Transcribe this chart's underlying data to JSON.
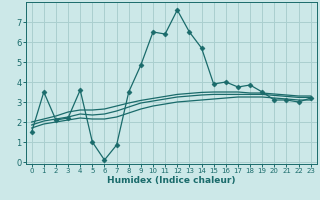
{
  "xlabel": "Humidex (Indice chaleur)",
  "background_color": "#cce8e8",
  "grid_color": "#aacfcf",
  "line_color": "#1a6b6b",
  "xlim": [
    -0.5,
    23.5
  ],
  "ylim": [
    -0.1,
    8.0
  ],
  "yticks": [
    0,
    1,
    2,
    3,
    4,
    5,
    6,
    7
  ],
  "xticks": [
    0,
    1,
    2,
    3,
    4,
    5,
    6,
    7,
    8,
    9,
    10,
    11,
    12,
    13,
    14,
    15,
    16,
    17,
    18,
    19,
    20,
    21,
    22,
    23
  ],
  "series": [
    {
      "x": [
        0,
        1,
        2,
        3,
        4,
        5,
        6,
        7,
        8,
        9,
        10,
        11,
        12,
        13,
        14,
        15,
        16,
        17,
        18,
        19,
        20,
        21,
        22,
        23
      ],
      "y": [
        1.5,
        3.5,
        2.1,
        2.2,
        3.6,
        1.0,
        0.1,
        0.85,
        3.5,
        4.85,
        6.5,
        6.4,
        7.6,
        6.5,
        5.7,
        3.9,
        4.0,
        3.75,
        3.85,
        3.5,
        3.1,
        3.1,
        3.0,
        3.2
      ],
      "marker": "D",
      "markersize": 2.5,
      "linewidth": 0.9,
      "has_marker": true
    },
    {
      "x": [
        0,
        1,
        2,
        3,
        4,
        5,
        6,
        7,
        8,
        9,
        10,
        11,
        12,
        13,
        14,
        15,
        16,
        17,
        18,
        19,
        20,
        21,
        22,
        23
      ],
      "y": [
        1.7,
        1.9,
        2.0,
        2.1,
        2.2,
        2.15,
        2.15,
        2.25,
        2.45,
        2.65,
        2.8,
        2.9,
        3.0,
        3.05,
        3.1,
        3.15,
        3.2,
        3.25,
        3.25,
        3.25,
        3.2,
        3.15,
        3.1,
        3.1
      ],
      "marker": null,
      "markersize": 0,
      "linewidth": 0.9,
      "has_marker": false
    },
    {
      "x": [
        0,
        1,
        2,
        3,
        4,
        5,
        6,
        7,
        8,
        9,
        10,
        11,
        12,
        13,
        14,
        15,
        16,
        17,
        18,
        19,
        20,
        21,
        22,
        23
      ],
      "y": [
        1.85,
        2.05,
        2.15,
        2.25,
        2.4,
        2.35,
        2.4,
        2.55,
        2.75,
        2.95,
        3.05,
        3.15,
        3.25,
        3.3,
        3.35,
        3.38,
        3.38,
        3.38,
        3.38,
        3.38,
        3.33,
        3.28,
        3.23,
        3.23
      ],
      "marker": null,
      "markersize": 0,
      "linewidth": 0.9,
      "has_marker": false
    },
    {
      "x": [
        0,
        1,
        2,
        3,
        4,
        5,
        6,
        7,
        8,
        9,
        10,
        11,
        12,
        13,
        14,
        15,
        16,
        17,
        18,
        19,
        20,
        21,
        22,
        23
      ],
      "y": [
        2.0,
        2.15,
        2.3,
        2.5,
        2.6,
        2.6,
        2.65,
        2.8,
        2.95,
        3.08,
        3.18,
        3.28,
        3.38,
        3.43,
        3.48,
        3.5,
        3.5,
        3.5,
        3.45,
        3.45,
        3.4,
        3.35,
        3.3,
        3.3
      ],
      "marker": null,
      "markersize": 0,
      "linewidth": 0.9,
      "has_marker": false
    }
  ]
}
